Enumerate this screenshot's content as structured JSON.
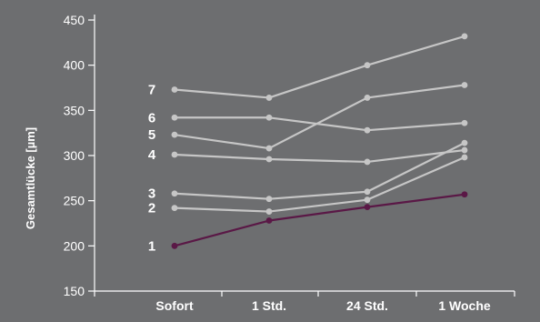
{
  "chart_data": {
    "type": "line",
    "title": "",
    "xlabel": "",
    "ylabel": "Gesamtlücke [µm]",
    "categories": [
      "Sofort",
      "1 Std.",
      "24 Std.",
      "1 Woche"
    ],
    "ylim": [
      150,
      450
    ],
    "yticks": [
      150,
      200,
      250,
      300,
      350,
      400,
      450
    ],
    "grid": false,
    "legend": "none",
    "background_color": "#6d6e70",
    "series": [
      {
        "name": "1",
        "color": "#5a1846",
        "values": [
          200,
          228,
          243,
          257
        ]
      },
      {
        "name": "2",
        "color": "#c6c6c6",
        "values": [
          242,
          238,
          251,
          298
        ]
      },
      {
        "name": "3",
        "color": "#c6c6c6",
        "values": [
          258,
          252,
          260,
          314
        ]
      },
      {
        "name": "4",
        "color": "#c6c6c6",
        "values": [
          301,
          296,
          293,
          306
        ]
      },
      {
        "name": "5",
        "color": "#c6c6c6",
        "values": [
          323,
          308,
          364,
          378
        ]
      },
      {
        "name": "6",
        "color": "#c6c6c6",
        "values": [
          342,
          342,
          328,
          336
        ]
      },
      {
        "name": "7",
        "color": "#c6c6c6",
        "values": [
          373,
          364,
          400,
          432
        ]
      }
    ]
  }
}
